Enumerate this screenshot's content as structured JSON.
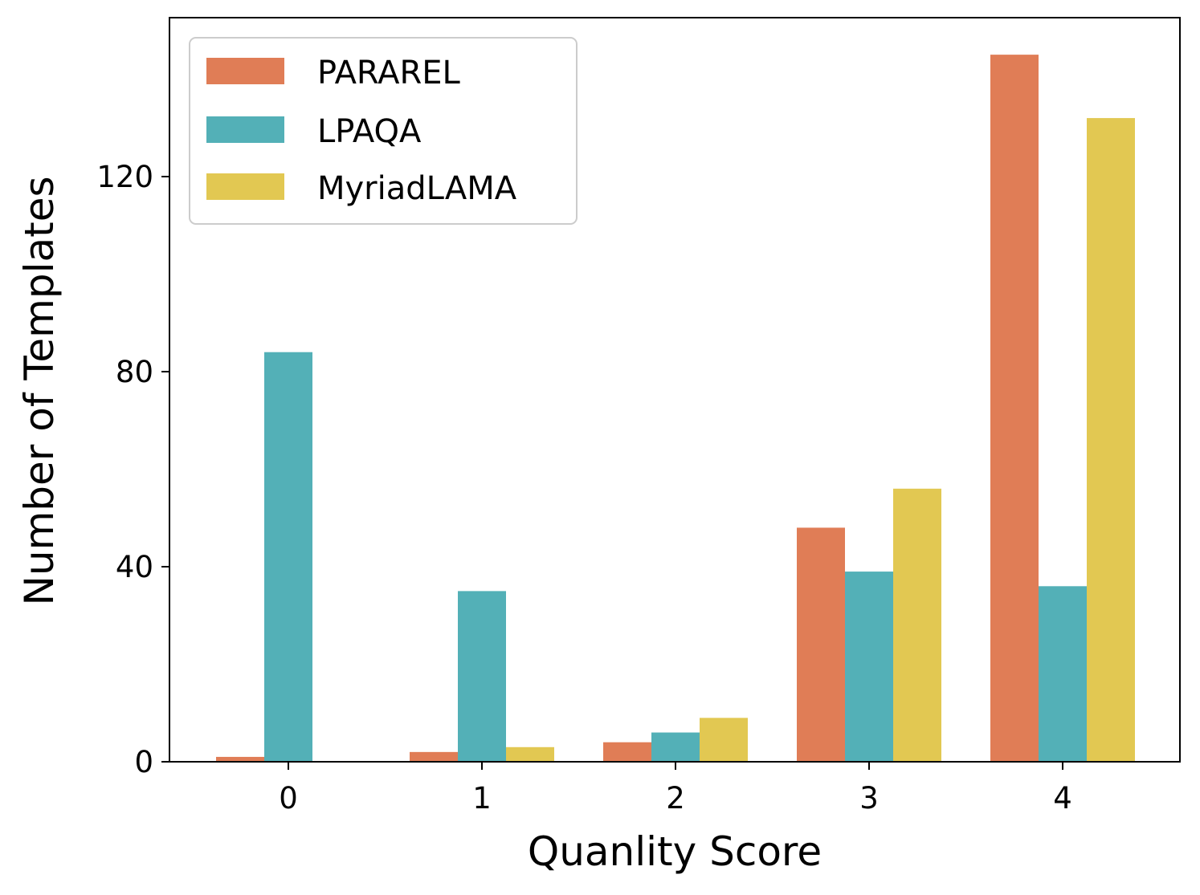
{
  "chart_data": {
    "type": "bar",
    "categories": [
      "0",
      "1",
      "2",
      "3",
      "4"
    ],
    "series": [
      {
        "name": "PARAREL",
        "color": "#E07D56",
        "values": [
          1,
          2,
          4,
          48,
          145
        ]
      },
      {
        "name": "LPAQA",
        "color": "#53B0B7",
        "values": [
          84,
          35,
          6,
          39,
          36
        ]
      },
      {
        "name": "MyriadLAMA",
        "color": "#E2C852",
        "values": [
          0,
          3,
          9,
          56,
          132
        ]
      }
    ],
    "xlabel": "Quanlity Score",
    "ylabel": "Number of Templates",
    "yticks": [
      "0",
      "40",
      "80",
      "120"
    ],
    "ylim": [
      0,
      153
    ],
    "grid": false,
    "legend_position": "top-left"
  }
}
